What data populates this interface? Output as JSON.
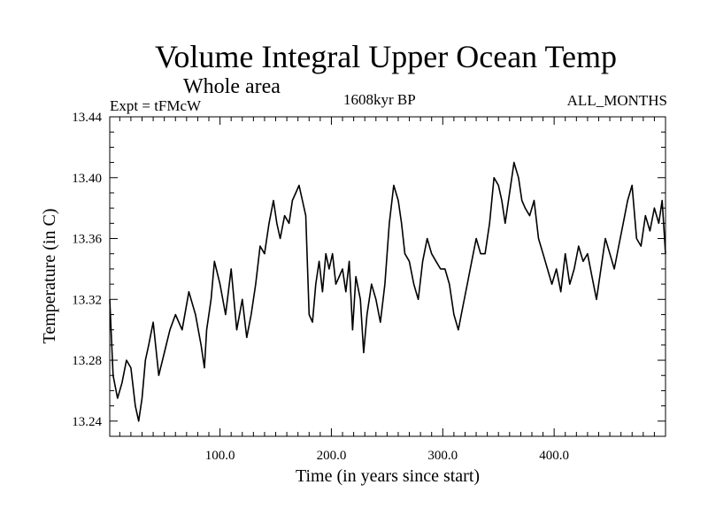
{
  "chart_data": {
    "type": "line",
    "title": "Volume Integral Upper Ocean Temp",
    "subtitle": "Whole area",
    "experiment_label": "Expt = tFMcW",
    "period_label": "1608kyr BP",
    "months_label": "ALL_MONTHS",
    "xlabel": "Time (in years since start)",
    "ylabel": "Temperature (in C)",
    "xlim": [
      1,
      500
    ],
    "ylim": [
      13.23,
      13.44
    ],
    "xticks": [
      {
        "value": 100,
        "label": "100.0"
      },
      {
        "value": 200,
        "label": "200.0"
      },
      {
        "value": 300,
        "label": "300.0"
      },
      {
        "value": 400,
        "label": "400.0"
      }
    ],
    "yticks": [
      {
        "value": 13.24,
        "label": "13.24"
      },
      {
        "value": 13.28,
        "label": "13.28"
      },
      {
        "value": 13.32,
        "label": "13.32"
      },
      {
        "value": 13.36,
        "label": "13.36"
      },
      {
        "value": 13.4,
        "label": "13.40"
      },
      {
        "value": 13.44,
        "label": "13.44"
      }
    ],
    "grid": false,
    "line_color": "#000000",
    "series": [
      {
        "name": "Volume Integral Upper Ocean Temp",
        "x": [
          1,
          4,
          8,
          12,
          16,
          20,
          24,
          27,
          30,
          33,
          36,
          40,
          45,
          50,
          55,
          60,
          66,
          72,
          78,
          83,
          86,
          88,
          92,
          95,
          100,
          105,
          110,
          115,
          120,
          124,
          128,
          132,
          136,
          140,
          144,
          148,
          151,
          154,
          158,
          162,
          165,
          168,
          171,
          174,
          177,
          180,
          183,
          186,
          189,
          192,
          195,
          198,
          201,
          204,
          207,
          210,
          213,
          216,
          219,
          222,
          226,
          229,
          232,
          236,
          240,
          244,
          248,
          252,
          256,
          260,
          263,
          266,
          270,
          274,
          278,
          282,
          286,
          290,
          294,
          298,
          302,
          306,
          310,
          314,
          318,
          322,
          326,
          330,
          334,
          338,
          342,
          346,
          350,
          353,
          356,
          360,
          364,
          368,
          371,
          374,
          378,
          382,
          386,
          390,
          394,
          398,
          402,
          406,
          410,
          414,
          418,
          422,
          426,
          430,
          434,
          438,
          442,
          446,
          450,
          454,
          458,
          462,
          466,
          470,
          474,
          478,
          482,
          486,
          490,
          494,
          497,
          500
        ],
        "values": [
          13.32,
          13.27,
          13.255,
          13.265,
          13.28,
          13.275,
          13.25,
          13.24,
          13.255,
          13.28,
          13.29,
          13.305,
          13.27,
          13.285,
          13.3,
          13.31,
          13.3,
          13.325,
          13.31,
          13.29,
          13.275,
          13.3,
          13.32,
          13.345,
          13.33,
          13.31,
          13.34,
          13.3,
          13.32,
          13.295,
          13.31,
          13.33,
          13.355,
          13.35,
          13.37,
          13.385,
          13.37,
          13.36,
          13.375,
          13.37,
          13.385,
          13.39,
          13.395,
          13.385,
          13.375,
          13.31,
          13.305,
          13.33,
          13.345,
          13.325,
          13.35,
          13.34,
          13.35,
          13.33,
          13.335,
          13.34,
          13.325,
          13.345,
          13.3,
          13.335,
          13.32,
          13.285,
          13.31,
          13.33,
          13.32,
          13.305,
          13.33,
          13.37,
          13.395,
          13.385,
          13.37,
          13.35,
          13.345,
          13.33,
          13.32,
          13.345,
          13.36,
          13.35,
          13.345,
          13.34,
          13.34,
          13.33,
          13.31,
          13.3,
          13.315,
          13.33,
          13.345,
          13.36,
          13.35,
          13.35,
          13.37,
          13.4,
          13.395,
          13.385,
          13.37,
          13.39,
          13.41,
          13.4,
          13.385,
          13.38,
          13.375,
          13.385,
          13.36,
          13.35,
          13.34,
          13.33,
          13.34,
          13.325,
          13.35,
          13.33,
          13.34,
          13.355,
          13.345,
          13.35,
          13.335,
          13.32,
          13.34,
          13.36,
          13.35,
          13.34,
          13.355,
          13.37,
          13.385,
          13.395,
          13.36,
          13.355,
          13.375,
          13.365,
          13.38,
          13.37,
          13.385,
          13.35
        ]
      }
    ]
  }
}
